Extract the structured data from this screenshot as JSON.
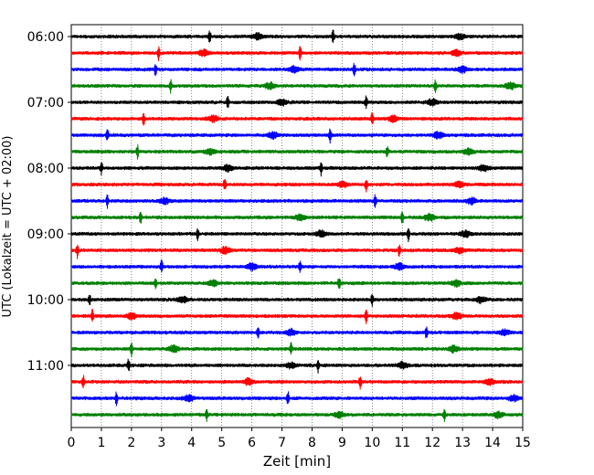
{
  "chart_data": {
    "type": "line",
    "title": "",
    "xlabel": "Zeit  [min]",
    "ylabel": "UTC (Lokalzeit = UTC + 02:00)",
    "xlim": [
      0,
      15
    ],
    "x_ticks": [
      "0",
      "1",
      "2",
      "3",
      "4",
      "5",
      "6",
      "7",
      "8",
      "9",
      "10",
      "11",
      "12",
      "13",
      "14",
      "15"
    ],
    "y_tick_labels": [
      "06:00",
      "07:00",
      "08:00",
      "09:00",
      "10:00",
      "11:00"
    ],
    "trace_interval_min": 15,
    "trace_start": "06:00",
    "trace_end": "11:45",
    "trace_count": 24,
    "trace_colors": [
      "#000000",
      "#ff0000",
      "#0000ff",
      "#008000"
    ],
    "grid": "vertical dotted lines at each minute",
    "traces": [
      {
        "start": "06:00",
        "color": "#000000",
        "events_min": [
          4.6,
          6.2,
          8.7,
          12.9
        ]
      },
      {
        "start": "06:15",
        "color": "#ff0000",
        "events_min": [
          2.9,
          4.4,
          7.6,
          12.8
        ]
      },
      {
        "start": "06:30",
        "color": "#0000ff",
        "events_min": [
          2.8,
          7.4,
          9.4,
          13.0
        ]
      },
      {
        "start": "06:45",
        "color": "#008000",
        "events_min": [
          3.3,
          6.6,
          12.1,
          14.6
        ]
      },
      {
        "start": "07:00",
        "color": "#000000",
        "events_min": [
          5.2,
          7.0,
          9.8,
          12.0
        ]
      },
      {
        "start": "07:15",
        "color": "#ff0000",
        "events_min": [
          2.4,
          4.7,
          10.0,
          10.7
        ]
      },
      {
        "start": "07:30",
        "color": "#0000ff",
        "events_min": [
          1.2,
          6.7,
          8.6,
          12.2
        ]
      },
      {
        "start": "07:45",
        "color": "#008000",
        "events_min": [
          2.2,
          4.6,
          10.5,
          13.2
        ]
      },
      {
        "start": "08:00",
        "color": "#000000",
        "events_min": [
          1.0,
          5.2,
          8.3,
          13.7
        ]
      },
      {
        "start": "08:15",
        "color": "#ff0000",
        "events_min": [
          5.1,
          9.0,
          9.8,
          12.9
        ]
      },
      {
        "start": "08:30",
        "color": "#0000ff",
        "events_min": [
          1.2,
          3.1,
          10.1,
          13.3
        ]
      },
      {
        "start": "08:45",
        "color": "#008000",
        "events_min": [
          2.3,
          7.6,
          11.0,
          11.9
        ]
      },
      {
        "start": "09:00",
        "color": "#000000",
        "events_min": [
          4.2,
          8.3,
          11.2,
          13.1
        ]
      },
      {
        "start": "09:15",
        "color": "#ff0000",
        "events_min": [
          0.2,
          5.1,
          10.9,
          12.9
        ]
      },
      {
        "start": "09:30",
        "color": "#0000ff",
        "events_min": [
          3.0,
          6.0,
          7.6,
          10.9
        ]
      },
      {
        "start": "09:45",
        "color": "#008000",
        "events_min": [
          2.8,
          4.7,
          8.9,
          12.8
        ]
      },
      {
        "start": "10:00",
        "color": "#000000",
        "events_min": [
          0.6,
          3.7,
          10.0,
          13.6
        ]
      },
      {
        "start": "10:15",
        "color": "#ff0000",
        "events_min": [
          0.7,
          2.0,
          9.8,
          12.8
        ]
      },
      {
        "start": "10:30",
        "color": "#0000ff",
        "events_min": [
          6.2,
          7.3,
          11.8,
          14.4
        ]
      },
      {
        "start": "10:45",
        "color": "#008000",
        "events_min": [
          2.0,
          3.4,
          7.3,
          12.7
        ]
      },
      {
        "start": "11:00",
        "color": "#000000",
        "events_min": [
          1.9,
          7.3,
          8.2,
          11.0
        ]
      },
      {
        "start": "11:15",
        "color": "#ff0000",
        "events_min": [
          0.4,
          5.9,
          9.6,
          13.9
        ]
      },
      {
        "start": "11:30",
        "color": "#0000ff",
        "events_min": [
          1.5,
          3.9,
          7.2,
          14.7
        ]
      },
      {
        "start": "11:45",
        "color": "#008000",
        "events_min": [
          4.5,
          8.9,
          12.4,
          14.2
        ]
      }
    ]
  }
}
